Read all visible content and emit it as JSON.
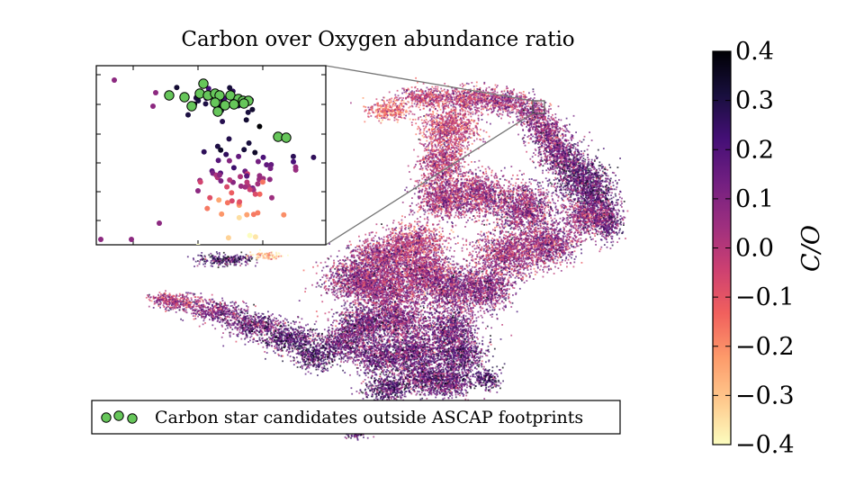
{
  "chart_data": {
    "type": "scatter",
    "title": "Carbon over Oxygen abundance ratio",
    "xlabel": "",
    "ylabel": "",
    "colorbar": {
      "label": "C/O",
      "range": [
        -0.4,
        0.4
      ],
      "ticks": [
        "0.4",
        "0.3",
        "0.2",
        "0.1",
        "0.0",
        "−0.1",
        "−0.2",
        "−0.3",
        "−0.4"
      ],
      "colormap": "magma_r",
      "colors": [
        "#fcfdbf",
        "#fec98d",
        "#fd9a6a",
        "#f1605d",
        "#cd4071",
        "#9e2f7f",
        "#721f81",
        "#440f76",
        "#180f3d",
        "#000004"
      ]
    },
    "legend": {
      "position": "bottom",
      "entries": [
        {
          "label": "Carbon star candidates outside ASCAP footprints",
          "marker": "circle",
          "color": "#66c65a"
        }
      ]
    },
    "inset": {
      "description_of_marks": "zoomed region of the carbon-rich island",
      "marker_color": "#66c65a"
    },
    "axes_visible": false,
    "grid": false
  }
}
